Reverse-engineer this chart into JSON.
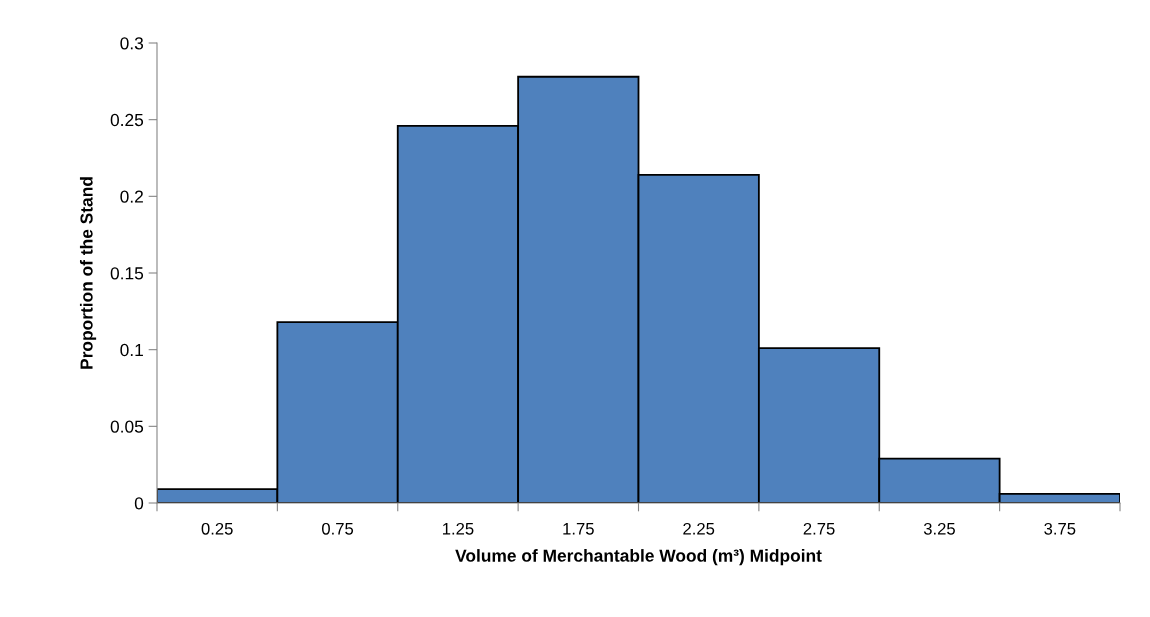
{
  "chart_data": {
    "type": "histogram",
    "xlabel": "Volume of Merchantable Wood (m³) Midpoint",
    "ylabel": "Proportion of the Stand",
    "bins": [
      0,
      0.5,
      1,
      1.5,
      2,
      2.5,
      3,
      3.5,
      4
    ],
    "values": [
      0.009,
      0.118,
      0.246,
      0.278,
      0.214,
      0.101,
      0.029,
      0.006
    ],
    "color": "#4f81bd",
    "xlim": [
      0,
      4
    ],
    "xticks": [
      {
        "value": 0,
        "label": null
      },
      {
        "value": 0.25,
        "label": "0.25"
      },
      {
        "value": 0.5,
        "label": null
      },
      {
        "value": 0.75,
        "label": "0.75"
      },
      {
        "value": 1,
        "label": null
      },
      {
        "value": 1.25,
        "label": "1.25"
      },
      {
        "value": 1.5,
        "label": null
      },
      {
        "value": 1.75,
        "label": "1.75"
      },
      {
        "value": 2,
        "label": null
      },
      {
        "value": 2.25,
        "label": "2.25"
      },
      {
        "value": 2.5,
        "label": null
      },
      {
        "value": 2.75,
        "label": "2.75"
      },
      {
        "value": 3,
        "label": null
      },
      {
        "value": 3.25,
        "label": "3.25"
      },
      {
        "value": 3.5,
        "label": null
      },
      {
        "value": 3.75,
        "label": "3.75"
      },
      {
        "value": 4,
        "label": null
      }
    ],
    "ylim": [
      0,
      0.3
    ],
    "yticks": [
      0,
      0.05,
      0.1,
      0.15,
      0.2,
      0.25,
      0.3
    ],
    "grid": false
  }
}
